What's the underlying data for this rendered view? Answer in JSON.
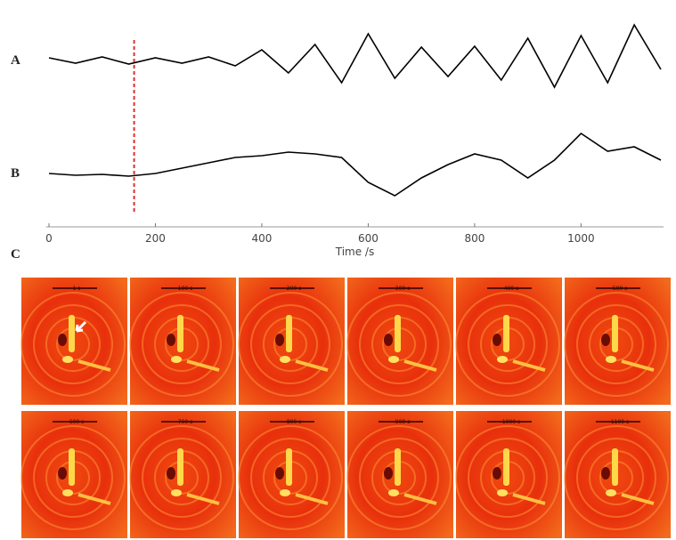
{
  "chart_data": {
    "type": "line",
    "x": [
      0,
      50,
      100,
      150,
      200,
      250,
      300,
      350,
      400,
      450,
      500,
      550,
      600,
      650,
      700,
      750,
      800,
      850,
      900,
      950,
      1000,
      1050,
      1100,
      1150
    ],
    "series": [
      {
        "name": "A",
        "color": "#000000",
        "values": [
          3,
          -3,
          4,
          -4,
          3,
          -3,
          4,
          -6,
          12,
          -14,
          18,
          -25,
          30,
          -20,
          15,
          -18,
          16,
          -22,
          25,
          -30,
          28,
          -25,
          40,
          -10
        ]
      },
      {
        "name": "B",
        "color": "#000000",
        "values": [
          0,
          -2,
          -1,
          -3,
          0,
          6,
          12,
          18,
          20,
          24,
          22,
          18,
          -10,
          -25,
          -5,
          10,
          22,
          15,
          -5,
          15,
          45,
          25,
          30,
          15
        ]
      }
    ],
    "xlabel": "Time /s",
    "xlim": [
      0,
      1150
    ],
    "xticks": [
      0,
      200,
      400,
      600,
      800,
      1000
    ],
    "marker_x": 160,
    "marker_color": "#e03030"
  },
  "images": {
    "label": "C",
    "frames": [
      "1 s",
      "100 s",
      "200 s",
      "300 s",
      "400 s",
      "500 s",
      "600 s",
      "700 s",
      "800 s",
      "900 s",
      "1000 s",
      "1100 s"
    ]
  }
}
